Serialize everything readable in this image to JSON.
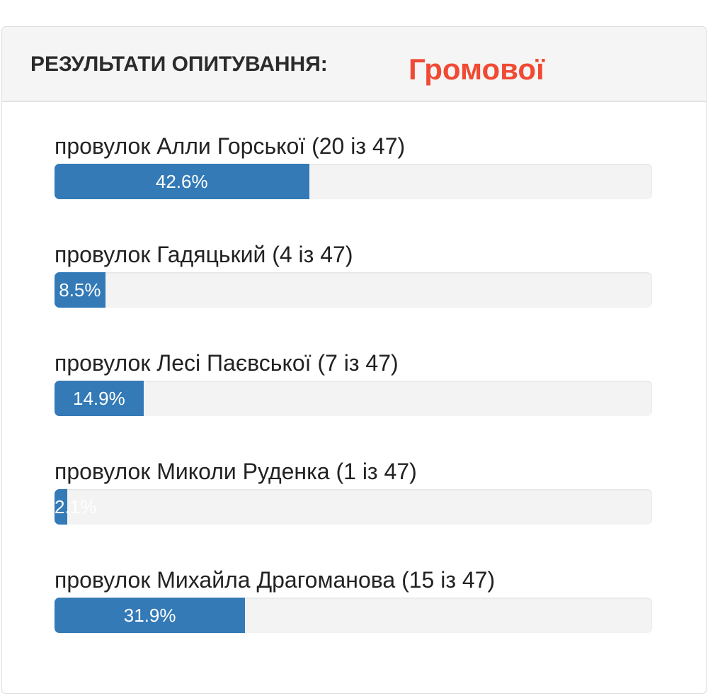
{
  "header": {
    "title": "РЕЗУЛЬТАТИ ОПИТУВАННЯ:",
    "highlight": "Громової",
    "highlight_color": "#f04a34"
  },
  "bar_color": "#337ab7",
  "options": [
    {
      "label": "провулок Алли Горської (20 із 47)",
      "percent_label": "42.6%",
      "percent": 42.6
    },
    {
      "label": "провулок Гадяцький (4 із 47)",
      "percent_label": "8.5%",
      "percent": 8.5
    },
    {
      "label": "провулок Лесі Паєвської (7 із 47)",
      "percent_label": "14.9%",
      "percent": 14.9
    },
    {
      "label": "провулок Миколи Руденка (1 із 47)",
      "percent_label": "2.1%",
      "percent": 2.1
    },
    {
      "label": "провулок Михайла Драгоманова (15 із 47)",
      "percent_label": "31.9%",
      "percent": 31.9
    }
  ]
}
